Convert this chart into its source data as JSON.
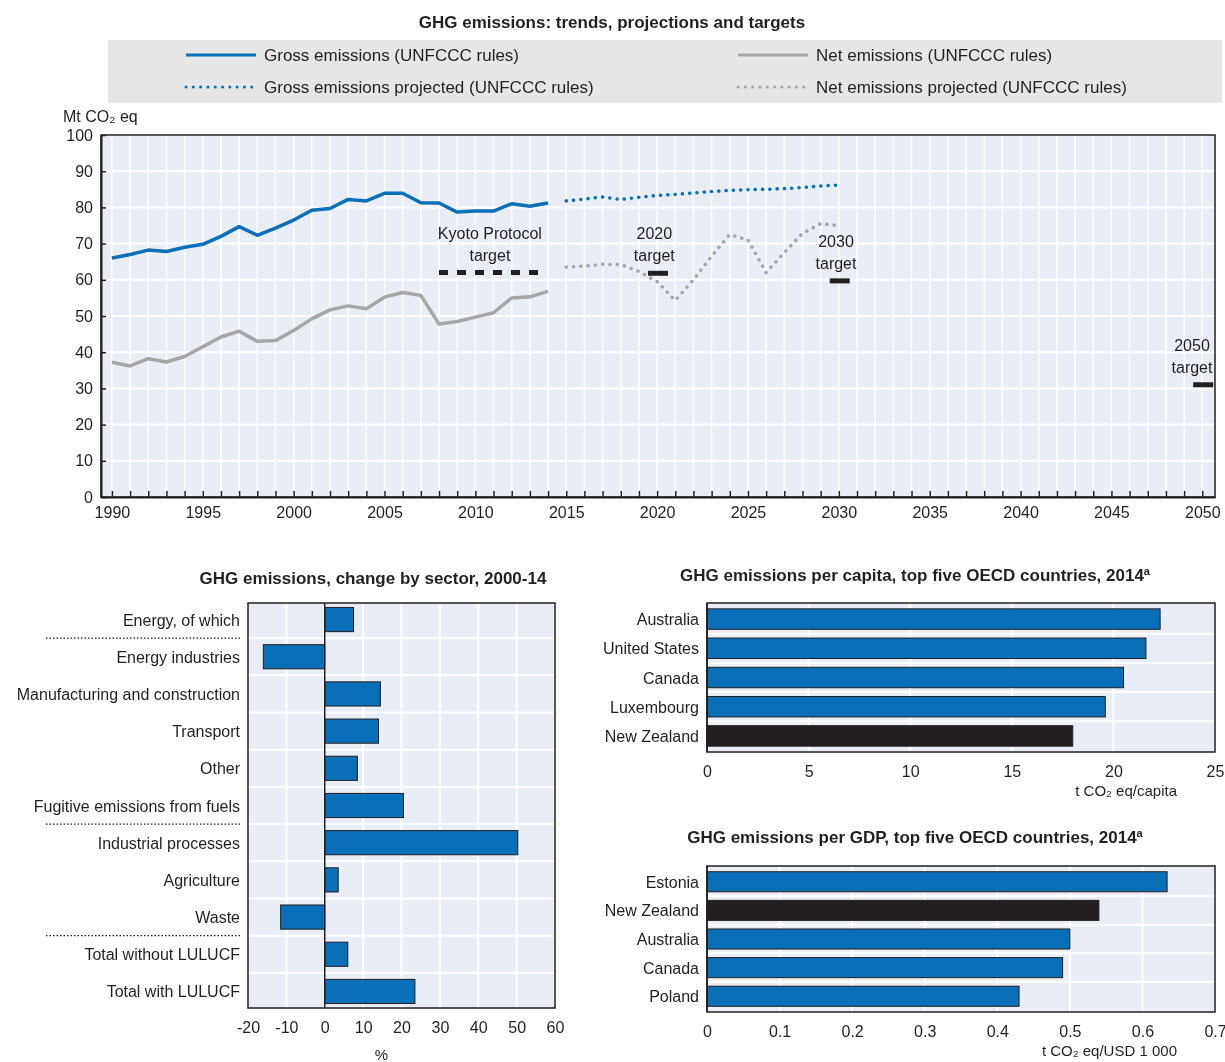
{
  "chart_data": [
    {
      "type": "line",
      "title": "GHG emissions: trends, projections and targets",
      "ylabel": "Mt CO₂ eq",
      "legend": "top",
      "grid": true,
      "xlim": [
        1989.4,
        2050.7
      ],
      "ylim": [
        0,
        100
      ],
      "yticks": [
        0,
        10,
        20,
        30,
        40,
        50,
        60,
        70,
        80,
        90,
        100
      ],
      "xticks": [
        1990,
        {
          "value": 1991,
          "label": null
        },
        {
          "value": 1992,
          "label": null
        },
        {
          "value": 1993,
          "label": null
        },
        {
          "value": 1994,
          "label": null
        },
        1995,
        {
          "value": 1996,
          "label": null
        },
        {
          "value": 1997,
          "label": null
        },
        {
          "value": 1998,
          "label": null
        },
        {
          "value": 1999,
          "label": null
        },
        2000,
        {
          "value": 2001,
          "label": null
        },
        {
          "value": 2002,
          "label": null
        },
        {
          "value": 2003,
          "label": null
        },
        {
          "value": 2004,
          "label": null
        },
        2005,
        {
          "value": 2006,
          "label": null
        },
        {
          "value": 2007,
          "label": null
        },
        {
          "value": 2008,
          "label": null
        },
        {
          "value": 2009,
          "label": null
        },
        2010,
        {
          "value": 2011,
          "label": null
        },
        {
          "value": 2012,
          "label": null
        },
        {
          "value": 2013,
          "label": null
        },
        {
          "value": 2014,
          "label": null
        },
        2015,
        {
          "value": 2016,
          "label": null
        },
        {
          "value": 2017,
          "label": null
        },
        {
          "value": 2018,
          "label": null
        },
        {
          "value": 2019,
          "label": null
        },
        2020,
        {
          "value": 2021,
          "label": null
        },
        {
          "value": 2022,
          "label": null
        },
        {
          "value": 2023,
          "label": null
        },
        {
          "value": 2024,
          "label": null
        },
        2025,
        {
          "value": 2026,
          "label": null
        },
        {
          "value": 2027,
          "label": null
        },
        {
          "value": 2028,
          "label": null
        },
        {
          "value": 2029,
          "label": null
        },
        2030,
        {
          "value": 2031,
          "label": null
        },
        {
          "value": 2032,
          "label": null
        },
        {
          "value": 2033,
          "label": null
        },
        {
          "value": 2034,
          "label": null
        },
        2035,
        {
          "value": 2036,
          "label": null
        },
        {
          "value": 2037,
          "label": null
        },
        {
          "value": 2038,
          "label": null
        },
        {
          "value": 2039,
          "label": null
        },
        2040,
        {
          "value": 2041,
          "label": null
        },
        {
          "value": 2042,
          "label": null
        },
        {
          "value": 2043,
          "label": null
        },
        {
          "value": 2044,
          "label": null
        },
        2045,
        {
          "value": 2046,
          "label": null
        },
        {
          "value": 2047,
          "label": null
        },
        {
          "value": 2048,
          "label": null
        },
        {
          "value": 2049,
          "label": null
        },
        2050
      ],
      "series": [
        {
          "name": "Gross emissions (UNFCCC rules)",
          "color": "#0a6fb9",
          "line_style": "solid",
          "x": [
            1990,
            1991,
            1992,
            1993,
            1994,
            1995,
            1996,
            1997,
            1998,
            1999,
            2000,
            2001,
            2002,
            2003,
            2004,
            2005,
            2006,
            2007,
            2008,
            2009,
            2010,
            2011,
            2012,
            2013,
            2014
          ],
          "values": [
            66,
            67,
            68.2,
            67.8,
            69,
            69.8,
            72,
            74.7,
            72.3,
            74.3,
            76.5,
            79.2,
            79.7,
            82.2,
            81.8,
            83.9,
            83.9,
            81.3,
            81.2,
            78.7,
            79,
            79,
            81,
            80.3,
            81.2
          ]
        },
        {
          "name": "Gross emissions projected (UNFCCC rules)",
          "color": "#0a6fb9",
          "line_style": "dotted",
          "x": [
            2015,
            2016,
            2017,
            2018,
            2019,
            2020,
            2021,
            2022,
            2023,
            2024,
            2025,
            2026,
            2027,
            2028,
            2029,
            2030
          ],
          "values": [
            81.8,
            82.3,
            82.9,
            82.2,
            82.8,
            83.3,
            83.6,
            84,
            84.4,
            84.7,
            84.9,
            85,
            85.2,
            85.5,
            85.9,
            86.2
          ]
        },
        {
          "name": "Net emissions (UNFCCC rules)",
          "color": "#a6a6a6",
          "line_style": "solid",
          "x": [
            1990,
            1991,
            1992,
            1993,
            1994,
            1995,
            1996,
            1997,
            1998,
            1999,
            2000,
            2001,
            2002,
            2003,
            2004,
            2005,
            2006,
            2007,
            2008,
            2009,
            2010,
            2011,
            2012,
            2013,
            2014
          ],
          "values": [
            37.2,
            36.2,
            38.2,
            37.3,
            38.8,
            41.5,
            44.2,
            45.8,
            43,
            43.2,
            46,
            49.2,
            51.7,
            52.8,
            52,
            55.2,
            56.5,
            55.7,
            47.8,
            48.5,
            49.7,
            50.9,
            55,
            55.3,
            56.8
          ]
        },
        {
          "name": "Net emissions projected (UNFCCC rules)",
          "color": "#a6a6a6",
          "line_style": "dotted",
          "x": [
            2015,
            2016,
            2017,
            2018,
            2019,
            2020,
            2021,
            2022,
            2023,
            2024,
            2025,
            2026,
            2027,
            2028,
            2029,
            2030
          ],
          "values": [
            63.5,
            63.8,
            64.3,
            64.2,
            62.3,
            59.5,
            54.3,
            60,
            66.5,
            72.5,
            71,
            62,
            67.5,
            72.8,
            75.5,
            75
          ]
        },
        {
          "color": "#231f20",
          "line_style": "dashed",
          "x": [
            2008,
            2013.5
          ],
          "values": [
            62,
            62
          ]
        },
        {
          "color": "#231f20",
          "line_style": "solid",
          "x": [
            2019.5,
            2020.6
          ],
          "values": [
            61.8,
            61.8
          ]
        },
        {
          "color": "#231f20",
          "line_style": "solid",
          "x": [
            2029.5,
            2030.6
          ],
          "values": [
            59.7,
            59.7
          ]
        },
        {
          "color": "#231f20",
          "line_style": "solid",
          "x": [
            2049.5,
            2050.6
          ],
          "values": [
            31,
            31
          ]
        }
      ],
      "annotations": [
        {
          "text": "Kyoto Protocol target",
          "x": 2010.8,
          "y": 62
        },
        {
          "text": "2020 target",
          "x": 2020.05,
          "y": 61.8
        },
        {
          "text": "2030 target",
          "x": 2030.05,
          "y": 59.7
        },
        {
          "text": "2050 target",
          "x": 2050.05,
          "y": 31
        }
      ]
    },
    {
      "type": "bar",
      "orientation": "horizontal",
      "title": "GHG emissions, change by sector, 2000-14",
      "xlabel": "%",
      "grid": true,
      "categories": [
        "Energy, of which",
        "Energy industries",
        "Manufacturing and construction",
        "Transport",
        "Other",
        "Fugitive emissions from fuels",
        "Industrial processes",
        "Agriculture",
        "Waste",
        "Total without LULUCF",
        "Total with LULUCF"
      ],
      "values": [
        7.5,
        -16,
        14.5,
        14,
        8.5,
        20.5,
        50.3,
        3.5,
        -11.5,
        6,
        23.5
      ],
      "color": "#0a6fb9",
      "xlim": [
        -20,
        60
      ],
      "xticks": [
        -20,
        -10,
        0,
        10,
        20,
        30,
        40,
        50,
        60
      ]
    },
    {
      "type": "bar",
      "orientation": "horizontal",
      "title": "GHG emissions per capita, top five OECD countries, 2014$^{a}$",
      "xlabel": "t CO₂ eq/capita",
      "grid": true,
      "categories": [
        "Australia",
        "United States",
        "Canada",
        "Luxembourg",
        "New Zealand"
      ],
      "values": [
        22.3,
        21.6,
        20.5,
        19.6,
        18
      ],
      "colors": [
        "#0a6fb9",
        "#0a6fb9",
        "#0a6fb9",
        "#0a6fb9",
        "#231f20"
      ],
      "xlim": [
        0,
        25
      ],
      "xticks": [
        0,
        5,
        10,
        15,
        20,
        25
      ]
    },
    {
      "type": "bar",
      "orientation": "horizontal",
      "title": "GHG emissions per GDP, top five OECD countries, 2014$^{a}$",
      "xlabel": "t CO₂ eq/USD 1 000",
      "grid": true,
      "categories": [
        "Estonia",
        "New Zealand",
        "Australia",
        "Canada",
        "Poland"
      ],
      "values": [
        0.634,
        0.54,
        0.5,
        0.49,
        0.43
      ],
      "colors": [
        "#0a6fb9",
        "#231f20",
        "#0a6fb9",
        "#0a6fb9",
        "#0a6fb9"
      ],
      "xlim": [
        0,
        0.7
      ],
      "xticks": [
        0,
        0.1,
        0.2,
        0.3,
        0.4,
        0.5,
        0.6,
        0.7
      ]
    }
  ]
}
